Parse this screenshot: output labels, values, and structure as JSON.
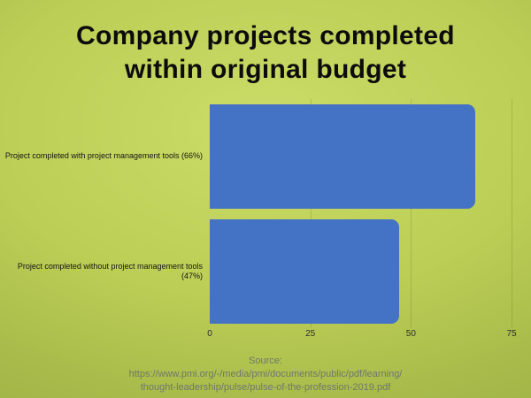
{
  "slide": {
    "background_center_color": "#cbdc68",
    "background_edge_color": "#9bae42"
  },
  "chart_data": {
    "type": "bar",
    "orientation": "horizontal",
    "title": "Company projects completed within original budget",
    "categories": [
      "Project completed with project management tools (66%)",
      "Project completed without project management tools (47%)"
    ],
    "values": [
      66,
      47
    ],
    "xlabel": "",
    "ylabel": "",
    "xlim": [
      0,
      75
    ],
    "xticks": [
      0,
      25,
      50,
      75
    ],
    "bar_color": "#4472c4",
    "grid": true,
    "legend": false
  },
  "source": {
    "lines": [
      "Source:",
      "https://www.pmi.org/-/media/pmi/documents/public/pdf/learning/",
      "thought-leadership/pulse/pulse-of-the-profession-2019.pdf"
    ]
  }
}
